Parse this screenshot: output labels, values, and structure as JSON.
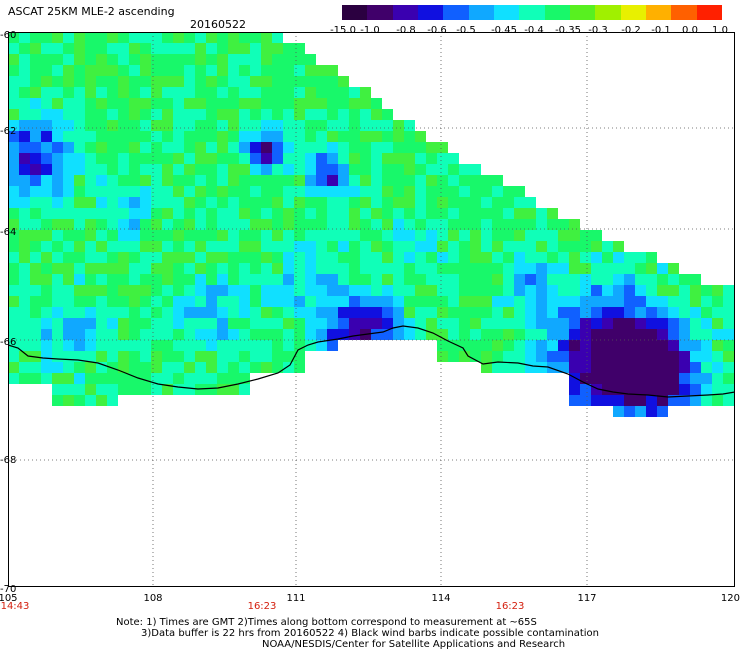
{
  "title": "ASCAT 25KM MLE-2 ascending",
  "date": "20160522",
  "colorbar": {
    "labels": [
      "-15.0",
      "-1.0",
      "-0.8",
      "-0.6",
      "-0.5",
      "-0.45",
      "-0.4",
      "-0.35",
      "-0.3",
      "-0.2",
      "-0.1",
      "0.0",
      "1.0"
    ],
    "colors": [
      "#2b0040",
      "#40006a",
      "#3a00b0",
      "#1010e0",
      "#1060ff",
      "#10a8ff",
      "#10e0ff",
      "#10ffb8",
      "#18f86a",
      "#58f020",
      "#a0f000",
      "#e8f000",
      "#ffb000",
      "#ff6000",
      "#ff2000"
    ]
  },
  "axes": {
    "lat_labels": [
      "-60",
      "-62",
      "-64",
      "-66",
      "-68",
      "-70"
    ],
    "lon_labels": [
      "105",
      "108",
      "111",
      "114",
      "117",
      "120"
    ],
    "time_labels": [
      "14:43",
      "16:23",
      "16:23"
    ]
  },
  "notes": {
    "line1": "Note: 1) Times are GMT 2)Times along bottom correspond to measurement at ~65S",
    "line2": "3)Data buffer is 22 hrs from 20160522 4) Black wind barbs indicate possible contamination",
    "line3": "NOAA/NESDIS/Center for Satellite Applications and Research"
  }
}
